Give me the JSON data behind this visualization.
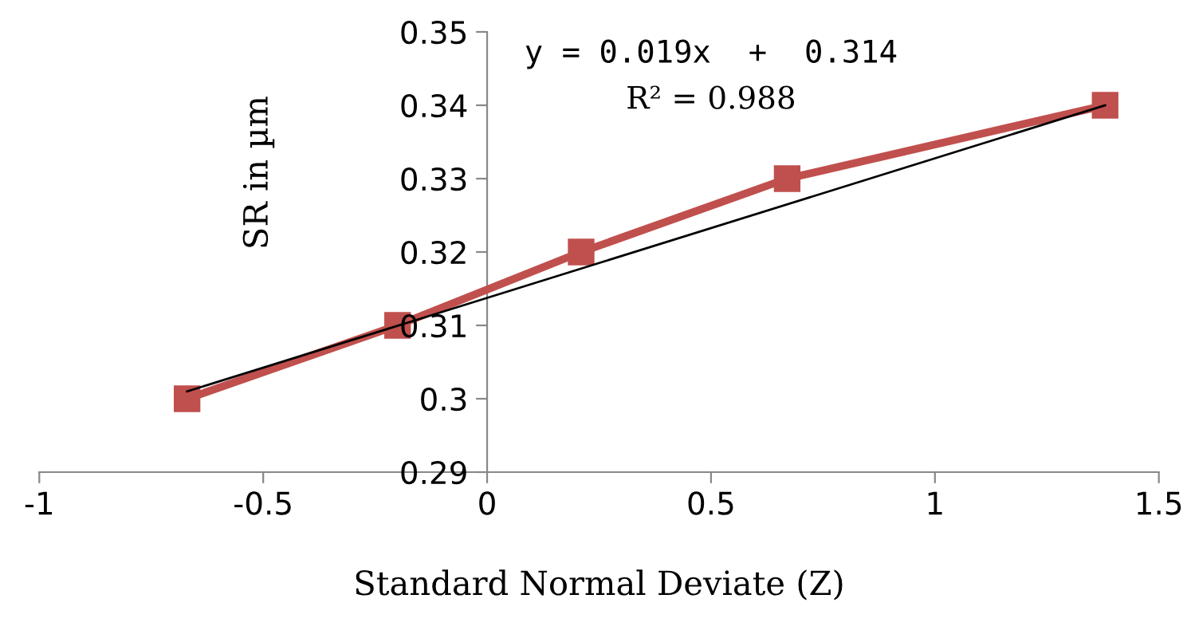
{
  "chart_data": {
    "type": "line",
    "xlabel": "Standard Normal Deviate (Z)",
    "ylabel": "SR in µm",
    "x": [
      -0.67,
      -0.2,
      0.21,
      0.67,
      1.38
    ],
    "series": [
      {
        "color": "#c0504d",
        "values": [
          0.3,
          0.31,
          0.32,
          0.33,
          0.34
        ],
        "marker": "square"
      },
      {
        "type": "line",
        "color": "#000000",
        "x": [
          -0.67,
          1.38
        ],
        "values": [
          0.301,
          0.34
        ],
        "marker": "none"
      }
    ],
    "xlim": [
      -1,
      1.5
    ],
    "xticks": [
      -1,
      -0.5,
      0,
      0.5,
      1,
      1.5
    ],
    "ylim": [
      0.29,
      0.35
    ],
    "yticks": [
      0.29,
      0.3,
      0.31,
      0.32,
      0.33,
      0.34,
      0.35
    ],
    "grid": false,
    "legend": false,
    "annotations": [
      "y = 0.019x  +  0.314",
      "R² = 0.988"
    ]
  }
}
